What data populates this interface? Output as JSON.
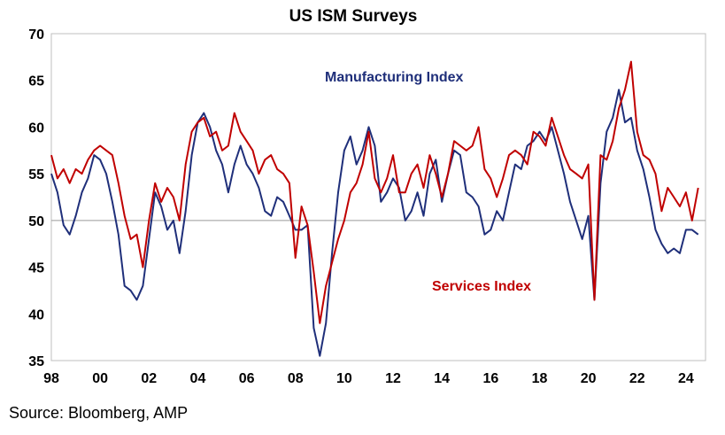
{
  "chart_data": {
    "type": "line",
    "title": "US ISM Surveys",
    "xlabel": "",
    "ylabel": "",
    "x_tick_labels": [
      "98",
      "00",
      "02",
      "04",
      "06",
      "08",
      "10",
      "12",
      "14",
      "16",
      "18",
      "20",
      "22",
      "24"
    ],
    "x_ticks_years": [
      1998,
      2000,
      2002,
      2004,
      2006,
      2008,
      2010,
      2012,
      2014,
      2016,
      2018,
      2020,
      2022,
      2024
    ],
    "xlim": [
      1998.0,
      2024.8
    ],
    "ylim": [
      35,
      70
    ],
    "y_ticks": [
      35,
      40,
      45,
      50,
      55,
      60,
      65,
      70
    ],
    "reference_line": 50,
    "grid": false,
    "annotations": [
      {
        "text": "Manufacturing Index",
        "series": "Manufacturing Index"
      },
      {
        "text": "Services Index",
        "series": "Services Index"
      }
    ],
    "series": [
      {
        "name": "Manufacturing Index",
        "color": "#1f2f7a",
        "points": [
          [
            1998.0,
            55.0
          ],
          [
            1998.25,
            53.0
          ],
          [
            1998.5,
            49.5
          ],
          [
            1998.75,
            48.5
          ],
          [
            1999.0,
            50.5
          ],
          [
            1999.25,
            53.0
          ],
          [
            1999.5,
            54.5
          ],
          [
            1999.75,
            57.0
          ],
          [
            2000.0,
            56.5
          ],
          [
            2000.25,
            55.0
          ],
          [
            2000.5,
            52.0
          ],
          [
            2000.75,
            48.5
          ],
          [
            2001.0,
            43.0
          ],
          [
            2001.25,
            42.5
          ],
          [
            2001.5,
            41.5
          ],
          [
            2001.75,
            43.0
          ],
          [
            2002.0,
            48.0
          ],
          [
            2002.25,
            53.0
          ],
          [
            2002.5,
            51.5
          ],
          [
            2002.75,
            49.0
          ],
          [
            2003.0,
            50.0
          ],
          [
            2003.25,
            46.5
          ],
          [
            2003.5,
            51.0
          ],
          [
            2003.75,
            57.0
          ],
          [
            2004.0,
            60.5
          ],
          [
            2004.25,
            61.5
          ],
          [
            2004.5,
            60.0
          ],
          [
            2004.75,
            57.5
          ],
          [
            2005.0,
            56.0
          ],
          [
            2005.25,
            53.0
          ],
          [
            2005.5,
            56.0
          ],
          [
            2005.75,
            58.0
          ],
          [
            2006.0,
            56.0
          ],
          [
            2006.25,
            55.0
          ],
          [
            2006.5,
            53.5
          ],
          [
            2006.75,
            51.0
          ],
          [
            2007.0,
            50.5
          ],
          [
            2007.25,
            52.5
          ],
          [
            2007.5,
            52.0
          ],
          [
            2007.75,
            50.5
          ],
          [
            2008.0,
            49.0
          ],
          [
            2008.25,
            49.0
          ],
          [
            2008.5,
            49.5
          ],
          [
            2008.75,
            38.5
          ],
          [
            2009.0,
            35.5
          ],
          [
            2009.25,
            39.0
          ],
          [
            2009.5,
            46.5
          ],
          [
            2009.75,
            53.0
          ],
          [
            2010.0,
            57.5
          ],
          [
            2010.25,
            59.0
          ],
          [
            2010.5,
            56.0
          ],
          [
            2010.75,
            57.5
          ],
          [
            2011.0,
            60.0
          ],
          [
            2011.25,
            58.0
          ],
          [
            2011.5,
            52.0
          ],
          [
            2011.75,
            53.0
          ],
          [
            2012.0,
            54.5
          ],
          [
            2012.25,
            53.5
          ],
          [
            2012.5,
            50.0
          ],
          [
            2012.75,
            51.0
          ],
          [
            2013.0,
            53.0
          ],
          [
            2013.25,
            50.5
          ],
          [
            2013.5,
            55.0
          ],
          [
            2013.75,
            56.5
          ],
          [
            2014.0,
            52.0
          ],
          [
            2014.25,
            55.0
          ],
          [
            2014.5,
            57.5
          ],
          [
            2014.75,
            57.0
          ],
          [
            2015.0,
            53.0
          ],
          [
            2015.25,
            52.5
          ],
          [
            2015.5,
            51.5
          ],
          [
            2015.75,
            48.5
          ],
          [
            2016.0,
            49.0
          ],
          [
            2016.25,
            51.0
          ],
          [
            2016.5,
            50.0
          ],
          [
            2016.75,
            53.0
          ],
          [
            2017.0,
            56.0
          ],
          [
            2017.25,
            55.5
          ],
          [
            2017.5,
            58.0
          ],
          [
            2017.75,
            58.5
          ],
          [
            2018.0,
            59.5
          ],
          [
            2018.25,
            58.5
          ],
          [
            2018.5,
            60.0
          ],
          [
            2018.75,
            57.5
          ],
          [
            2019.0,
            55.0
          ],
          [
            2019.25,
            52.0
          ],
          [
            2019.5,
            50.0
          ],
          [
            2019.75,
            48.0
          ],
          [
            2020.0,
            50.5
          ],
          [
            2020.25,
            41.5
          ],
          [
            2020.5,
            54.0
          ],
          [
            2020.75,
            59.5
          ],
          [
            2021.0,
            61.0
          ],
          [
            2021.25,
            64.0
          ],
          [
            2021.5,
            60.5
          ],
          [
            2021.75,
            61.0
          ],
          [
            2022.0,
            57.5
          ],
          [
            2022.25,
            55.5
          ],
          [
            2022.5,
            52.5
          ],
          [
            2022.75,
            49.0
          ],
          [
            2023.0,
            47.5
          ],
          [
            2023.25,
            46.5
          ],
          [
            2023.5,
            47.0
          ],
          [
            2023.75,
            46.5
          ],
          [
            2024.0,
            49.0
          ],
          [
            2024.25,
            49.0
          ],
          [
            2024.5,
            48.5
          ]
        ]
      },
      {
        "name": "Services Index",
        "color": "#c00000",
        "points": [
          [
            1998.0,
            57.0
          ],
          [
            1998.25,
            54.5
          ],
          [
            1998.5,
            55.5
          ],
          [
            1998.75,
            54.0
          ],
          [
            1999.0,
            55.5
          ],
          [
            1999.25,
            55.0
          ],
          [
            1999.5,
            56.5
          ],
          [
            1999.75,
            57.5
          ],
          [
            2000.0,
            58.0
          ],
          [
            2000.25,
            57.5
          ],
          [
            2000.5,
            57.0
          ],
          [
            2000.75,
            54.0
          ],
          [
            2001.0,
            50.5
          ],
          [
            2001.25,
            48.0
          ],
          [
            2001.5,
            48.5
          ],
          [
            2001.75,
            45.0
          ],
          [
            2002.0,
            50.0
          ],
          [
            2002.25,
            54.0
          ],
          [
            2002.5,
            52.0
          ],
          [
            2002.75,
            53.5
          ],
          [
            2003.0,
            52.5
          ],
          [
            2003.25,
            50.0
          ],
          [
            2003.5,
            56.0
          ],
          [
            2003.75,
            59.5
          ],
          [
            2004.0,
            60.5
          ],
          [
            2004.25,
            61.0
          ],
          [
            2004.5,
            59.0
          ],
          [
            2004.75,
            59.5
          ],
          [
            2005.0,
            57.5
          ],
          [
            2005.25,
            58.0
          ],
          [
            2005.5,
            61.5
          ],
          [
            2005.75,
            59.5
          ],
          [
            2006.0,
            58.5
          ],
          [
            2006.25,
            57.5
          ],
          [
            2006.5,
            55.0
          ],
          [
            2006.75,
            56.5
          ],
          [
            2007.0,
            57.0
          ],
          [
            2007.25,
            55.5
          ],
          [
            2007.5,
            55.0
          ],
          [
            2007.75,
            54.0
          ],
          [
            2008.0,
            46.0
          ],
          [
            2008.25,
            51.5
          ],
          [
            2008.5,
            49.5
          ],
          [
            2008.75,
            44.5
          ],
          [
            2009.0,
            39.0
          ],
          [
            2009.25,
            43.0
          ],
          [
            2009.5,
            45.5
          ],
          [
            2009.75,
            48.0
          ],
          [
            2010.0,
            50.0
          ],
          [
            2010.25,
            53.0
          ],
          [
            2010.5,
            54.0
          ],
          [
            2010.75,
            56.0
          ],
          [
            2011.0,
            59.5
          ],
          [
            2011.25,
            54.5
          ],
          [
            2011.5,
            53.0
          ],
          [
            2011.75,
            54.5
          ],
          [
            2012.0,
            57.0
          ],
          [
            2012.25,
            53.0
          ],
          [
            2012.5,
            53.0
          ],
          [
            2012.75,
            55.0
          ],
          [
            2013.0,
            56.0
          ],
          [
            2013.25,
            53.5
          ],
          [
            2013.5,
            57.0
          ],
          [
            2013.75,
            55.0
          ],
          [
            2014.0,
            52.5
          ],
          [
            2014.25,
            55.0
          ],
          [
            2014.5,
            58.5
          ],
          [
            2014.75,
            58.0
          ],
          [
            2015.0,
            57.5
          ],
          [
            2015.25,
            58.0
          ],
          [
            2015.5,
            60.0
          ],
          [
            2015.75,
            55.5
          ],
          [
            2016.0,
            54.5
          ],
          [
            2016.25,
            52.5
          ],
          [
            2016.5,
            54.5
          ],
          [
            2016.75,
            57.0
          ],
          [
            2017.0,
            57.5
          ],
          [
            2017.25,
            57.0
          ],
          [
            2017.5,
            56.0
          ],
          [
            2017.75,
            59.5
          ],
          [
            2018.0,
            59.0
          ],
          [
            2018.25,
            58.0
          ],
          [
            2018.5,
            61.0
          ],
          [
            2018.75,
            59.0
          ],
          [
            2019.0,
            57.0
          ],
          [
            2019.25,
            55.5
          ],
          [
            2019.5,
            55.0
          ],
          [
            2019.75,
            54.5
          ],
          [
            2020.0,
            56.0
          ],
          [
            2020.25,
            41.5
          ],
          [
            2020.5,
            57.0
          ],
          [
            2020.75,
            56.5
          ],
          [
            2021.0,
            58.5
          ],
          [
            2021.25,
            62.0
          ],
          [
            2021.5,
            64.0
          ],
          [
            2021.75,
            67.0
          ],
          [
            2022.0,
            59.5
          ],
          [
            2022.25,
            57.0
          ],
          [
            2022.5,
            56.5
          ],
          [
            2022.75,
            55.0
          ],
          [
            2023.0,
            51.0
          ],
          [
            2023.25,
            53.5
          ],
          [
            2023.5,
            52.5
          ],
          [
            2023.75,
            51.5
          ],
          [
            2024.0,
            53.0
          ],
          [
            2024.25,
            50.0
          ],
          [
            2024.5,
            53.5
          ]
        ]
      }
    ]
  },
  "source": "Source: Bloomberg, AMP"
}
